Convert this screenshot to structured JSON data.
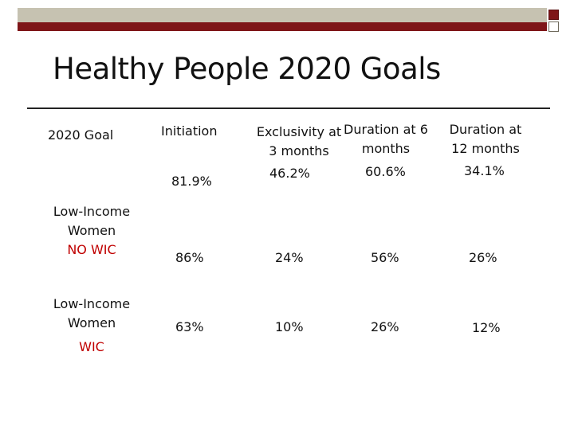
{
  "slide": {
    "title": "Healthy People 2020 Goals"
  },
  "table": {
    "header": {
      "label": "2020 Goal",
      "initiation": "Initiation",
      "exclusivity_line1": "Exclusivity at",
      "exclusivity_line2": "3 months",
      "duration6_line1": "Duration at 6",
      "duration6_line2": "months",
      "duration12_line1": "Duration at",
      "duration12_line2": "12 months"
    },
    "goal_row": {
      "initiation": "81.9%",
      "exclusivity": "46.2%",
      "duration6": "60.6%",
      "duration12": "34.1%"
    },
    "no_wic_row": {
      "label_line1": "Low-Income",
      "label_line2": "Women",
      "label_line3": "NO WIC",
      "initiation": "86%",
      "exclusivity": "24%",
      "duration6": "56%",
      "duration12": "26%"
    },
    "wic_row": {
      "label_line1": "Low-Income",
      "label_line2": "Women",
      "label_line3": "WIC",
      "initiation": "63%",
      "exclusivity": "10%",
      "duration6": "26%",
      "duration12": "12%"
    },
    "accent_red": "#c00000"
  }
}
